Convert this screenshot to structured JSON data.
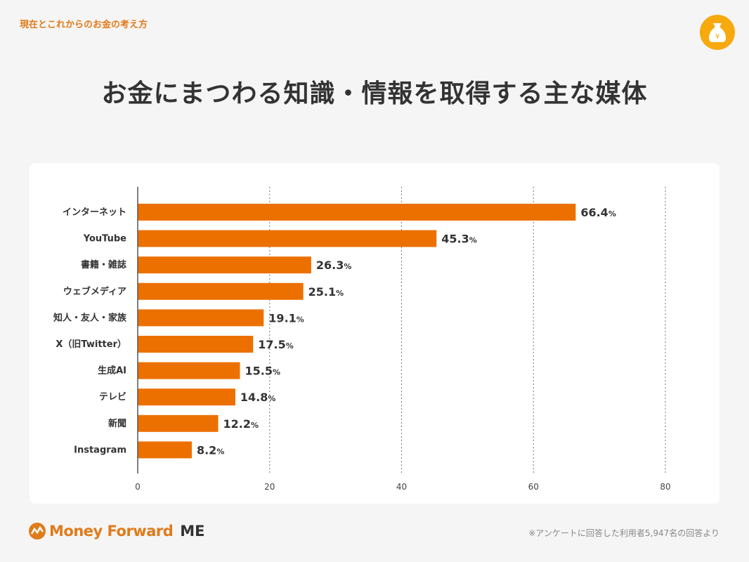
{
  "header": {
    "kicker": "現在とこれからのお金の考え方",
    "badge_icon": "money-bag-yen-icon",
    "badge_symbol": "¥"
  },
  "chart_data": {
    "type": "bar",
    "orientation": "horizontal",
    "title": "お金にまつわる知識・情報を取得する主な媒体",
    "categories": [
      "インターネット",
      "YouTube",
      "書籍・雑誌",
      "ウェブメディア",
      "知人・友人・家族",
      "X（旧Twitter）",
      "生成AI",
      "テレビ",
      "新聞",
      "Instagram"
    ],
    "values": [
      66.4,
      45.3,
      26.3,
      25.1,
      19.1,
      17.5,
      15.5,
      14.8,
      12.2,
      8.2
    ],
    "value_suffix": "%",
    "xlim": [
      0,
      80
    ],
    "xticks": [
      0,
      20,
      40,
      60,
      80
    ],
    "grid": true,
    "bar_color": "#ec7000"
  },
  "footer": {
    "logo_text": "Money Forward",
    "logo_suffix": "ME",
    "note": "※アンケートに回答した利用者5,947名の回答より"
  }
}
